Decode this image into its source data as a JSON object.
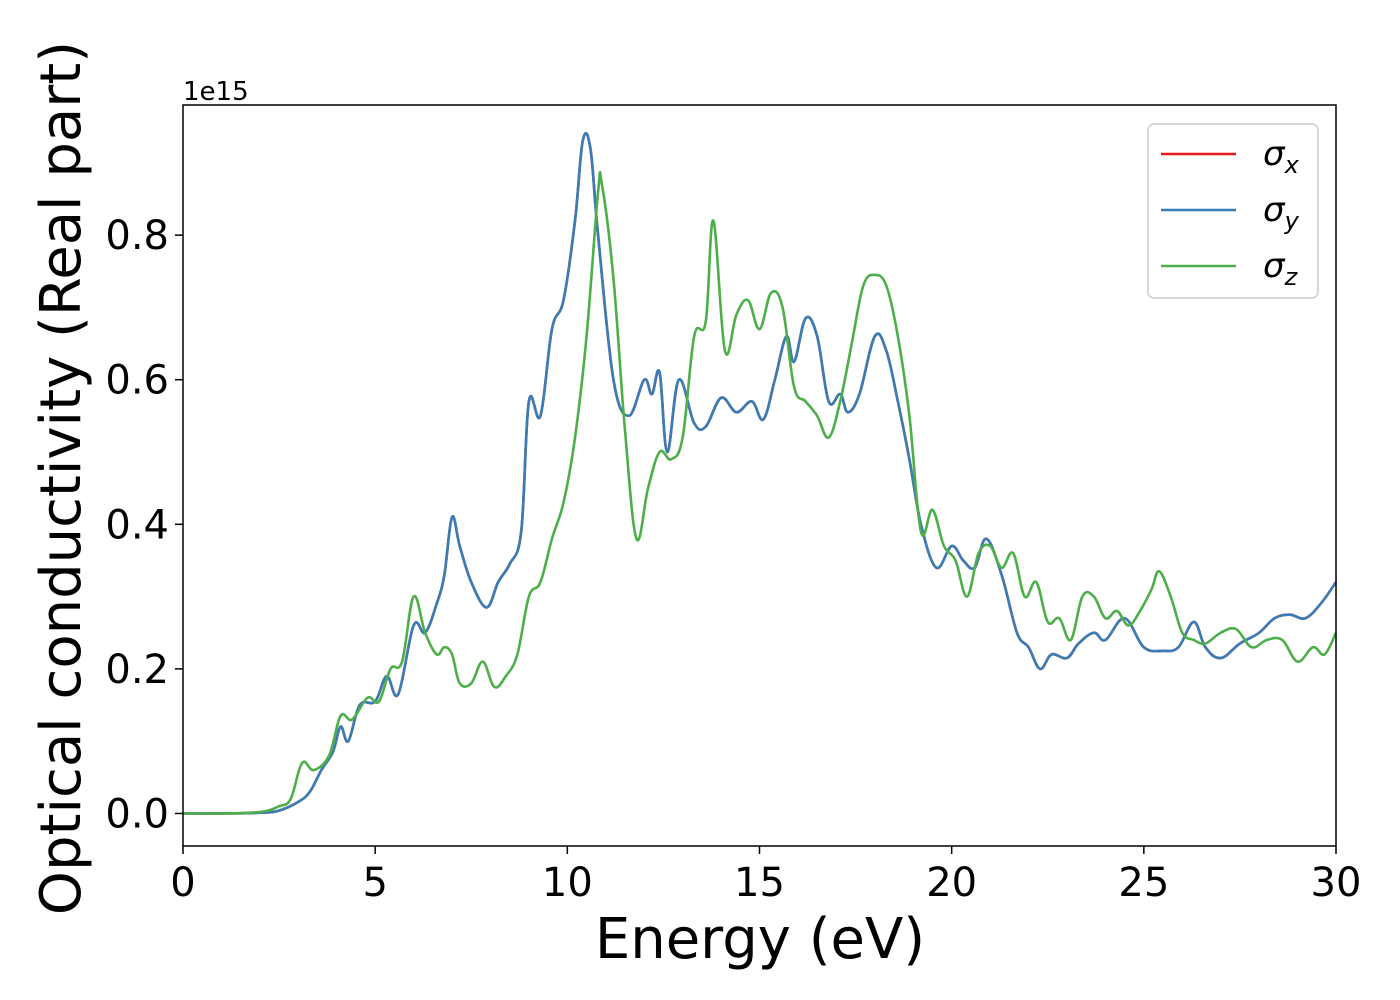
{
  "chart_data": {
    "type": "line",
    "xlabel": "Energy (eV)",
    "ylabel": "Optical conductivity (Real part)",
    "y_offset_label": "1e15",
    "xlim": [
      0,
      30
    ],
    "ylim": [
      -0.045,
      0.98
    ],
    "xticks": [
      0,
      5,
      10,
      15,
      20,
      25,
      30
    ],
    "xtick_labels": [
      "0",
      "5",
      "10",
      "15",
      "20",
      "25",
      "30"
    ],
    "yticks": [
      0.0,
      0.2,
      0.4,
      0.6,
      0.8
    ],
    "ytick_labels": [
      "0.0",
      "0.2",
      "0.4",
      "0.6",
      "0.8"
    ],
    "grid": false,
    "legend_position": "top-right",
    "series": [
      {
        "name": "σx",
        "symbol": "σ",
        "subscript": "x",
        "color": "#e41a1c",
        "x": [
          0,
          1,
          2,
          2.5,
          3,
          3.3,
          3.6,
          3.9,
          4.1,
          4.3,
          4.6,
          5,
          5.3,
          5.6,
          6,
          6.3,
          6.6,
          6.8,
          7,
          7.2,
          7.5,
          7.9,
          8.2,
          8.5,
          8.8,
          9,
          9.3,
          9.6,
          9.9,
          10.2,
          10.4,
          10.6,
          10.8,
          11.2,
          11.6,
          12,
          12.2,
          12.4,
          12.6,
          12.9,
          13.3,
          13.6,
          14,
          14.4,
          14.8,
          15.1,
          15.4,
          15.7,
          15.9,
          16.2,
          16.5,
          16.8,
          17.1,
          17.3,
          17.6,
          18,
          18.3,
          18.6,
          18.9,
          19.2,
          19.6,
          20,
          20.3,
          20.6,
          20.9,
          21.3,
          21.7,
          22,
          22.3,
          22.6,
          23,
          23.3,
          23.7,
          24,
          24.5,
          25,
          25.5,
          25.9,
          26.3,
          26.6,
          27,
          27.5,
          28,
          28.4,
          28.8,
          29.2,
          29.6,
          30
        ],
        "y": [
          0,
          0,
          0.001,
          0.004,
          0.016,
          0.03,
          0.06,
          0.085,
          0.12,
          0.1,
          0.15,
          0.155,
          0.19,
          0.165,
          0.26,
          0.25,
          0.29,
          0.33,
          0.41,
          0.37,
          0.32,
          0.285,
          0.32,
          0.345,
          0.39,
          0.57,
          0.55,
          0.67,
          0.71,
          0.82,
          0.93,
          0.92,
          0.8,
          0.6,
          0.55,
          0.6,
          0.58,
          0.61,
          0.5,
          0.6,
          0.54,
          0.535,
          0.575,
          0.555,
          0.57,
          0.545,
          0.6,
          0.66,
          0.625,
          0.685,
          0.66,
          0.57,
          0.58,
          0.555,
          0.58,
          0.66,
          0.64,
          0.57,
          0.49,
          0.4,
          0.34,
          0.37,
          0.35,
          0.34,
          0.38,
          0.33,
          0.25,
          0.23,
          0.2,
          0.22,
          0.215,
          0.235,
          0.25,
          0.24,
          0.27,
          0.23,
          0.225,
          0.23,
          0.265,
          0.23,
          0.215,
          0.235,
          0.25,
          0.27,
          0.275,
          0.27,
          0.29,
          0.32
        ]
      },
      {
        "name": "σy",
        "symbol": "σ",
        "subscript": "y",
        "color": "#377eb8",
        "x": [
          0,
          1,
          2,
          2.5,
          3,
          3.3,
          3.6,
          3.9,
          4.1,
          4.3,
          4.6,
          5,
          5.3,
          5.6,
          6,
          6.3,
          6.6,
          6.8,
          7,
          7.2,
          7.5,
          7.9,
          8.2,
          8.5,
          8.8,
          9,
          9.3,
          9.6,
          9.9,
          10.2,
          10.4,
          10.6,
          10.8,
          11.2,
          11.6,
          12,
          12.2,
          12.4,
          12.6,
          12.9,
          13.3,
          13.6,
          14,
          14.4,
          14.8,
          15.1,
          15.4,
          15.7,
          15.9,
          16.2,
          16.5,
          16.8,
          17.1,
          17.3,
          17.6,
          18,
          18.3,
          18.6,
          18.9,
          19.2,
          19.6,
          20,
          20.3,
          20.6,
          20.9,
          21.3,
          21.7,
          22,
          22.3,
          22.6,
          23,
          23.3,
          23.7,
          24,
          24.5,
          25,
          25.5,
          25.9,
          26.3,
          26.6,
          27,
          27.5,
          28,
          28.4,
          28.8,
          29.2,
          29.6,
          30
        ],
        "y": [
          0,
          0,
          0.001,
          0.004,
          0.016,
          0.03,
          0.06,
          0.085,
          0.12,
          0.1,
          0.15,
          0.155,
          0.19,
          0.165,
          0.26,
          0.25,
          0.29,
          0.33,
          0.41,
          0.37,
          0.32,
          0.285,
          0.32,
          0.345,
          0.39,
          0.57,
          0.55,
          0.67,
          0.71,
          0.82,
          0.93,
          0.92,
          0.8,
          0.6,
          0.55,
          0.6,
          0.58,
          0.61,
          0.5,
          0.6,
          0.54,
          0.535,
          0.575,
          0.555,
          0.57,
          0.545,
          0.6,
          0.66,
          0.625,
          0.685,
          0.66,
          0.57,
          0.58,
          0.555,
          0.58,
          0.66,
          0.64,
          0.57,
          0.49,
          0.4,
          0.34,
          0.37,
          0.35,
          0.34,
          0.38,
          0.33,
          0.25,
          0.23,
          0.2,
          0.22,
          0.215,
          0.235,
          0.25,
          0.24,
          0.27,
          0.23,
          0.225,
          0.23,
          0.265,
          0.23,
          0.215,
          0.235,
          0.25,
          0.27,
          0.275,
          0.27,
          0.29,
          0.32
        ]
      },
      {
        "name": "σz",
        "symbol": "σ",
        "subscript": "z",
        "color": "#4daf4a",
        "x": [
          0,
          1,
          2,
          2.5,
          2.8,
          3.1,
          3.4,
          3.8,
          4.1,
          4.4,
          4.8,
          5.1,
          5.4,
          5.7,
          6,
          6.3,
          6.6,
          6.8,
          7,
          7.2,
          7.5,
          7.8,
          8.1,
          8.4,
          8.7,
          9,
          9.3,
          9.6,
          9.9,
          10.2,
          10.5,
          10.8,
          10.9,
          11.2,
          11.5,
          11.8,
          12.1,
          12.4,
          12.7,
          13,
          13.3,
          13.6,
          13.8,
          14.1,
          14.4,
          14.7,
          15,
          15.3,
          15.6,
          15.9,
          16.2,
          16.5,
          16.8,
          17.1,
          17.4,
          17.7,
          18,
          18.3,
          18.6,
          18.9,
          19.2,
          19.5,
          19.8,
          20.1,
          20.4,
          20.7,
          21,
          21.3,
          21.6,
          21.9,
          22.2,
          22.5,
          22.8,
          23.1,
          23.4,
          23.7,
          24,
          24.3,
          24.6,
          24.9,
          25.2,
          25.4,
          25.7,
          26,
          26.3,
          26.6,
          27,
          27.4,
          27.8,
          28.2,
          28.6,
          29,
          29.4,
          29.7,
          30
        ],
        "y": [
          0,
          0,
          0.002,
          0.01,
          0.02,
          0.07,
          0.06,
          0.08,
          0.135,
          0.13,
          0.16,
          0.155,
          0.2,
          0.21,
          0.3,
          0.25,
          0.22,
          0.23,
          0.22,
          0.18,
          0.18,
          0.21,
          0.175,
          0.19,
          0.22,
          0.3,
          0.32,
          0.38,
          0.43,
          0.52,
          0.66,
          0.86,
          0.87,
          0.74,
          0.53,
          0.38,
          0.45,
          0.5,
          0.49,
          0.52,
          0.66,
          0.68,
          0.82,
          0.64,
          0.69,
          0.71,
          0.67,
          0.72,
          0.7,
          0.59,
          0.57,
          0.55,
          0.52,
          0.57,
          0.65,
          0.73,
          0.745,
          0.73,
          0.66,
          0.55,
          0.39,
          0.42,
          0.37,
          0.35,
          0.3,
          0.36,
          0.37,
          0.34,
          0.36,
          0.3,
          0.32,
          0.265,
          0.27,
          0.24,
          0.3,
          0.3,
          0.27,
          0.28,
          0.26,
          0.28,
          0.31,
          0.335,
          0.3,
          0.25,
          0.24,
          0.235,
          0.25,
          0.255,
          0.23,
          0.24,
          0.24,
          0.21,
          0.23,
          0.22,
          0.25
        ]
      }
    ]
  }
}
